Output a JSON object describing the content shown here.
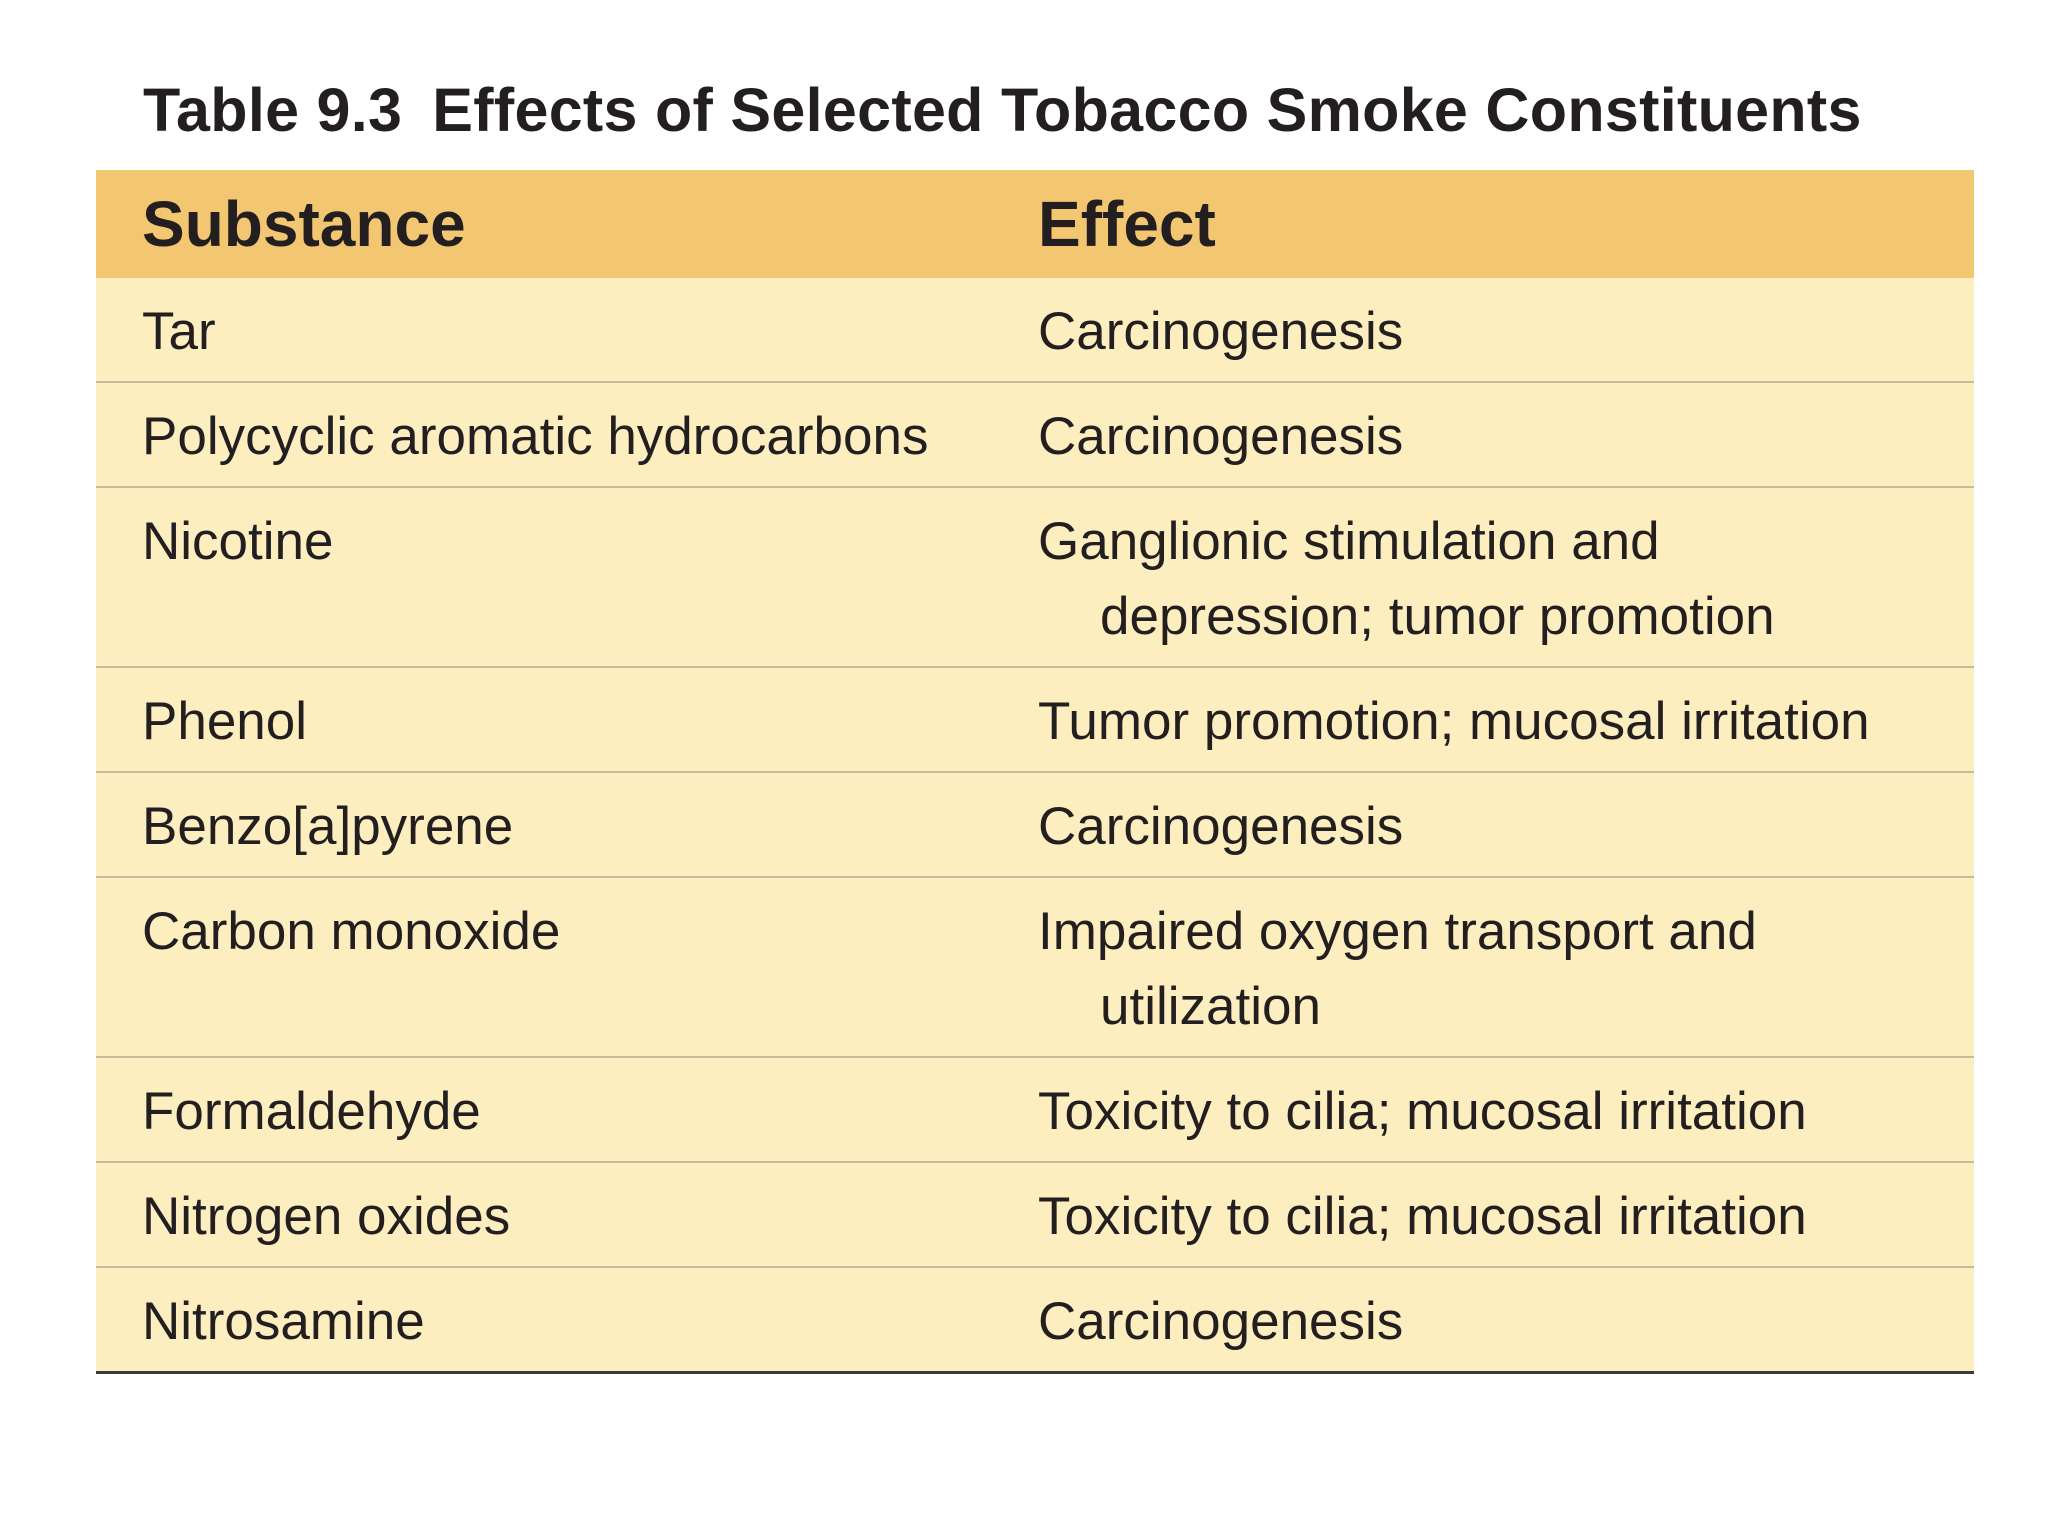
{
  "caption": {
    "number": "Table 9.3",
    "title": "Effects of Selected Tobacco Smoke Constituents"
  },
  "table": {
    "headers": [
      "Substance",
      "Effect"
    ],
    "rows": [
      {
        "substance": "Tar",
        "effect": "Carcinogenesis"
      },
      {
        "substance": "Polycyclic aromatic hydrocarbons",
        "effect": "Carcinogenesis"
      },
      {
        "substance": "Nicotine",
        "effect": "Ganglionic stimulation and depression; tumor promotion"
      },
      {
        "substance": "Phenol",
        "effect": "Tumor promotion; mucosal irritation"
      },
      {
        "substance": "Benzo[a]pyrene",
        "effect": "Carcinogenesis"
      },
      {
        "substance": "Carbon monoxide",
        "effect": "Impaired oxygen transport and utilization"
      },
      {
        "substance": "Formaldehyde",
        "effect": "Toxicity to cilia; mucosal irritation"
      },
      {
        "substance": "Nitrogen oxides",
        "effect": "Toxicity to cilia; mucosal irritation"
      },
      {
        "substance": "Nitrosamine",
        "effect": "Carcinogenesis"
      }
    ]
  },
  "colors": {
    "header_fill": "#f3c672",
    "body_fill": "#fdeebf",
    "row_rule": "#c8bc9a",
    "text": "#231f20"
  }
}
